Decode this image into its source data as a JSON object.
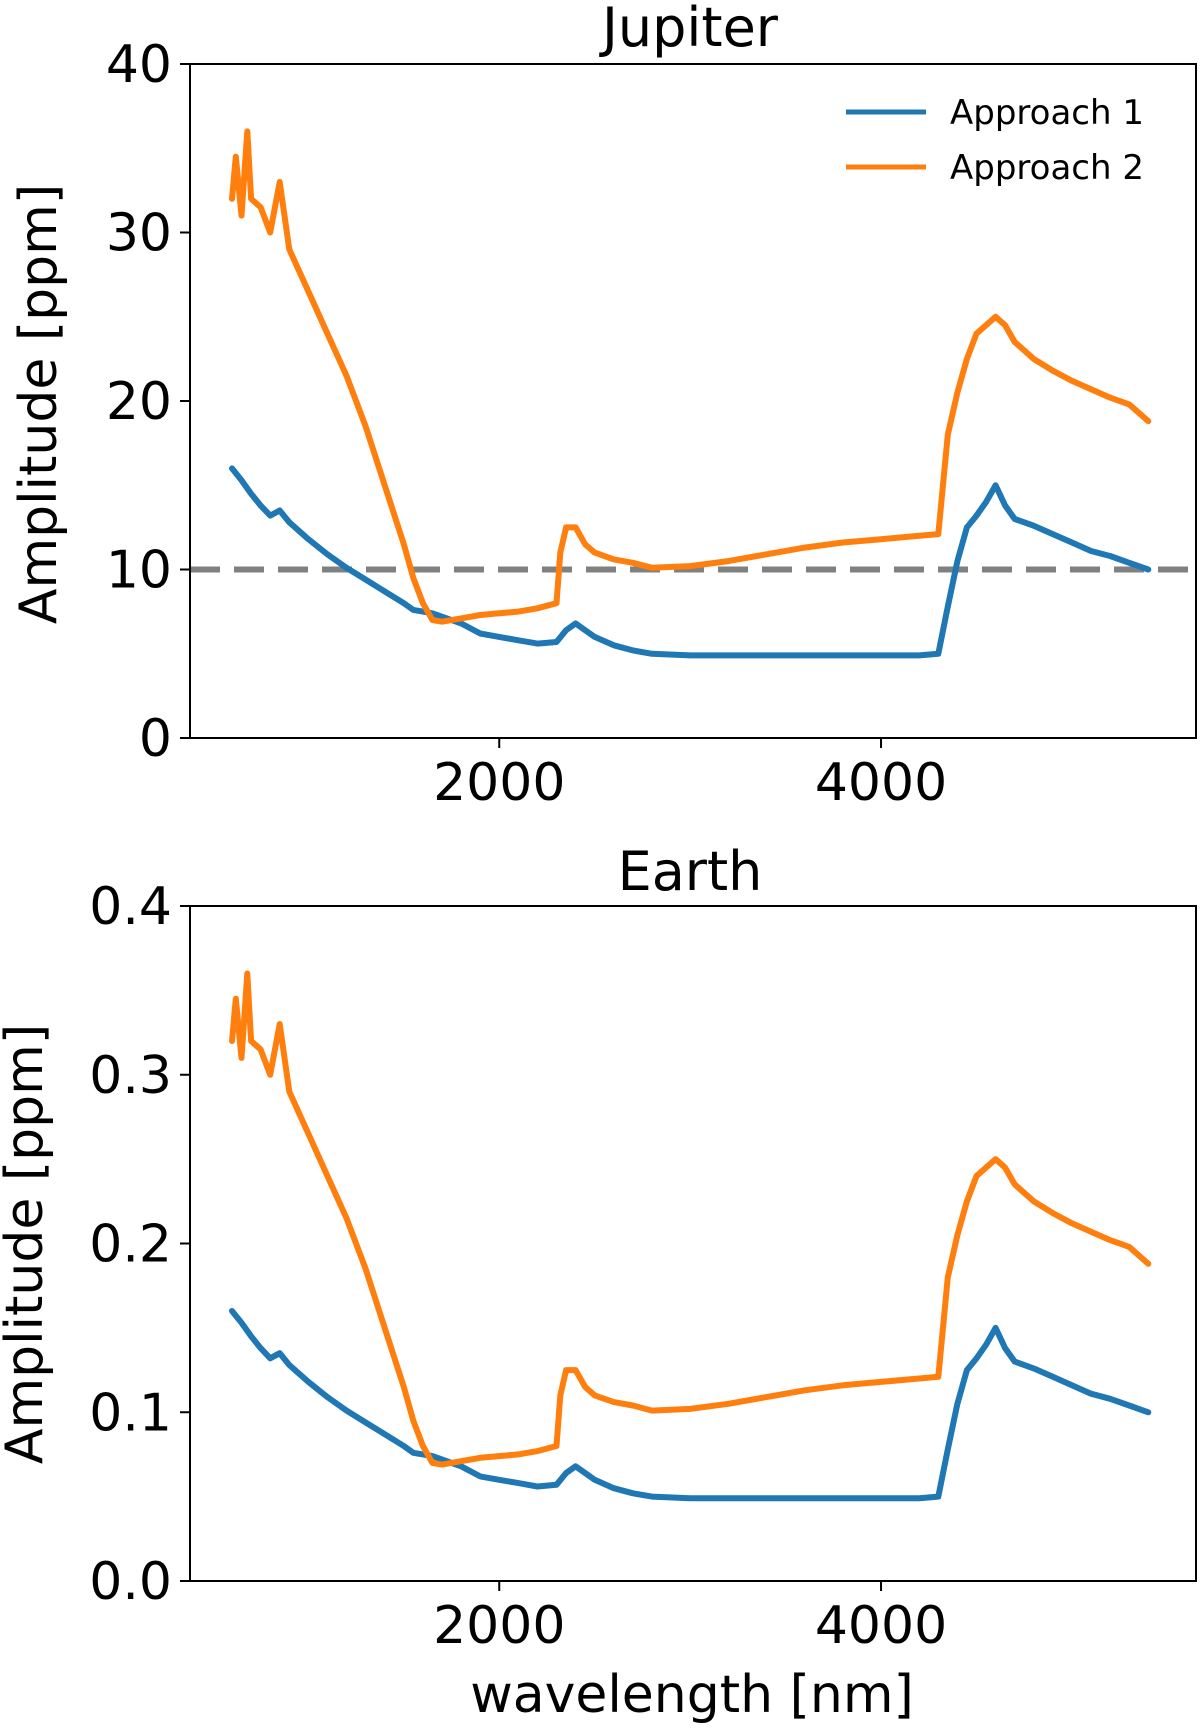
{
  "chart_data": [
    {
      "type": "line",
      "title": "Jupiter",
      "xlabel": "",
      "ylabel": "Amplitude [ppm]",
      "xlim": [
        380,
        5650
      ],
      "ylim": [
        0,
        40
      ],
      "xticks": [
        2000,
        4000
      ],
      "xtick_labels": [
        "2000",
        "4000"
      ],
      "yticks": [
        0,
        10,
        20,
        30,
        40
      ],
      "ytick_labels": [
        "0",
        "10",
        "20",
        "30",
        "40"
      ],
      "grid": false,
      "legend": "top-right",
      "reference_line": {
        "y": 10,
        "style": "dashed",
        "color": "#808080"
      },
      "series": [
        {
          "name": "Approach 1",
          "color": "#1f77b4",
          "x": [
            600,
            650,
            700,
            750,
            800,
            850,
            900,
            1000,
            1100,
            1200,
            1300,
            1400,
            1500,
            1550,
            1600,
            1650,
            1700,
            1800,
            1900,
            2000,
            2100,
            2200,
            2300,
            2350,
            2400,
            2450,
            2500,
            2600,
            2700,
            2800,
            3000,
            3200,
            3400,
            3600,
            3800,
            4000,
            4200,
            4300,
            4350,
            4400,
            4450,
            4500,
            4550,
            4600,
            4650,
            4700,
            4800,
            4900,
            5000,
            5100,
            5200,
            5300,
            5400
          ],
          "y": [
            16.0,
            15.3,
            14.5,
            13.8,
            13.2,
            13.5,
            12.8,
            11.8,
            10.9,
            10.1,
            9.4,
            8.7,
            8.0,
            7.6,
            7.5,
            7.4,
            7.2,
            6.8,
            6.2,
            6.0,
            5.8,
            5.6,
            5.7,
            6.4,
            6.8,
            6.4,
            6.0,
            5.5,
            5.2,
            5.0,
            4.9,
            4.9,
            4.9,
            4.9,
            4.9,
            4.9,
            4.9,
            5.0,
            7.8,
            10.5,
            12.5,
            13.2,
            14.0,
            15.0,
            13.8,
            13.0,
            12.6,
            12.1,
            11.6,
            11.1,
            10.8,
            10.4,
            10.0
          ]
        },
        {
          "name": "Approach 2",
          "color": "#ff7f0e",
          "x": [
            600,
            620,
            650,
            680,
            700,
            750,
            800,
            850,
            900,
            1000,
            1100,
            1200,
            1300,
            1400,
            1500,
            1550,
            1600,
            1650,
            1700,
            1800,
            1900,
            2000,
            2100,
            2200,
            2300,
            2320,
            2350,
            2400,
            2450,
            2500,
            2600,
            2700,
            2800,
            3000,
            3200,
            3400,
            3600,
            3800,
            4000,
            4200,
            4300,
            4350,
            4400,
            4450,
            4500,
            4550,
            4600,
            4650,
            4700,
            4800,
            4900,
            5000,
            5100,
            5200,
            5300,
            5400
          ],
          "y": [
            32.0,
            34.5,
            31.0,
            36.0,
            32.0,
            31.5,
            30.0,
            33.0,
            29.0,
            26.5,
            24.0,
            21.5,
            18.5,
            15.0,
            11.5,
            9.5,
            8.0,
            7.0,
            6.9,
            7.1,
            7.3,
            7.4,
            7.5,
            7.7,
            8.0,
            11.0,
            12.5,
            12.5,
            11.5,
            11.0,
            10.6,
            10.4,
            10.1,
            10.2,
            10.5,
            10.9,
            11.3,
            11.6,
            11.8,
            12.0,
            12.1,
            18.0,
            20.5,
            22.5,
            24.0,
            24.5,
            25.0,
            24.5,
            23.5,
            22.5,
            21.8,
            21.2,
            20.7,
            20.2,
            19.8,
            18.8
          ]
        }
      ]
    },
    {
      "type": "line",
      "title": "Earth",
      "xlabel": "wavelength [nm]",
      "ylabel": "Amplitude [ppm]",
      "xlim": [
        380,
        5650
      ],
      "ylim": [
        0,
        0.4
      ],
      "xticks": [
        2000,
        4000
      ],
      "xtick_labels": [
        "2000",
        "4000"
      ],
      "yticks": [
        0.0,
        0.1,
        0.2,
        0.3,
        0.4
      ],
      "ytick_labels": [
        "0.0",
        "0.1",
        "0.2",
        "0.3",
        "0.4"
      ],
      "grid": false,
      "series": [
        {
          "name": "Approach 1",
          "color": "#1f77b4",
          "x": [
            600,
            650,
            700,
            750,
            800,
            850,
            900,
            1000,
            1100,
            1200,
            1300,
            1400,
            1500,
            1550,
            1600,
            1650,
            1700,
            1800,
            1900,
            2000,
            2100,
            2200,
            2300,
            2350,
            2400,
            2450,
            2500,
            2600,
            2700,
            2800,
            3000,
            3200,
            3400,
            3600,
            3800,
            4000,
            4200,
            4300,
            4350,
            4400,
            4450,
            4500,
            4550,
            4600,
            4650,
            4700,
            4800,
            4900,
            5000,
            5100,
            5200,
            5300,
            5400
          ],
          "y": [
            0.16,
            0.153,
            0.145,
            0.138,
            0.132,
            0.135,
            0.128,
            0.118,
            0.109,
            0.101,
            0.094,
            0.087,
            0.08,
            0.076,
            0.075,
            0.074,
            0.072,
            0.068,
            0.062,
            0.06,
            0.058,
            0.056,
            0.057,
            0.064,
            0.068,
            0.064,
            0.06,
            0.055,
            0.052,
            0.05,
            0.049,
            0.049,
            0.049,
            0.049,
            0.049,
            0.049,
            0.049,
            0.05,
            0.078,
            0.105,
            0.125,
            0.132,
            0.14,
            0.15,
            0.138,
            0.13,
            0.126,
            0.121,
            0.116,
            0.111,
            0.108,
            0.104,
            0.1
          ]
        },
        {
          "name": "Approach 2",
          "color": "#ff7f0e",
          "x": [
            600,
            620,
            650,
            680,
            700,
            750,
            800,
            850,
            900,
            1000,
            1100,
            1200,
            1300,
            1400,
            1500,
            1550,
            1600,
            1650,
            1700,
            1800,
            1900,
            2000,
            2100,
            2200,
            2300,
            2320,
            2350,
            2400,
            2450,
            2500,
            2600,
            2700,
            2800,
            3000,
            3200,
            3400,
            3600,
            3800,
            4000,
            4200,
            4300,
            4350,
            4400,
            4450,
            4500,
            4550,
            4600,
            4650,
            4700,
            4800,
            4900,
            5000,
            5100,
            5200,
            5300,
            5400
          ],
          "y": [
            0.32,
            0.345,
            0.31,
            0.36,
            0.32,
            0.315,
            0.3,
            0.33,
            0.29,
            0.265,
            0.24,
            0.215,
            0.185,
            0.15,
            0.115,
            0.095,
            0.08,
            0.07,
            0.069,
            0.071,
            0.073,
            0.074,
            0.075,
            0.077,
            0.08,
            0.11,
            0.125,
            0.125,
            0.115,
            0.11,
            0.106,
            0.104,
            0.101,
            0.102,
            0.105,
            0.109,
            0.113,
            0.116,
            0.118,
            0.12,
            0.121,
            0.18,
            0.205,
            0.225,
            0.24,
            0.245,
            0.25,
            0.245,
            0.235,
            0.225,
            0.218,
            0.212,
            0.207,
            0.202,
            0.198,
            0.188
          ]
        }
      ]
    }
  ]
}
